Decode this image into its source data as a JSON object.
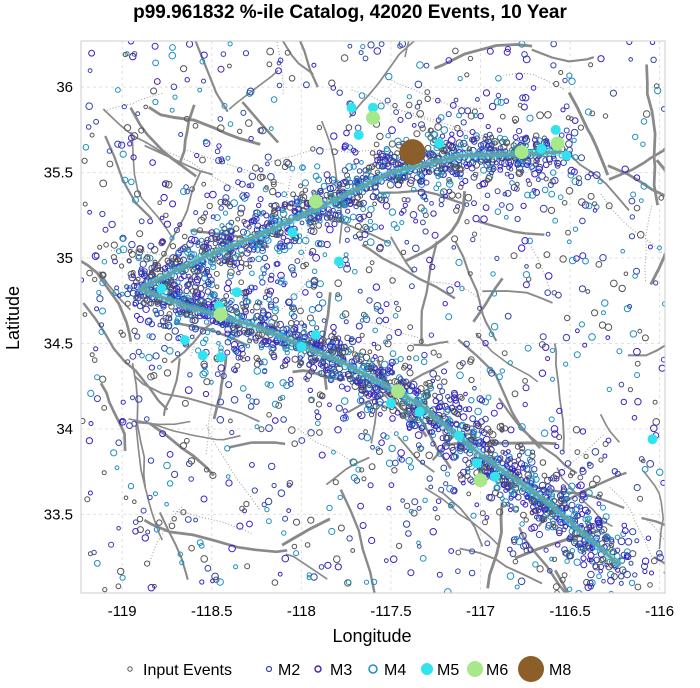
{
  "chart_data": {
    "type": "scatter",
    "title": "p99.961832 %-ile Catalog, 42020 Events, 10 Year",
    "xlabel": "Longitude",
    "ylabel": "Latitude",
    "xlim": [
      -119.23,
      -115.97
    ],
    "ylim": [
      33.04,
      36.27
    ],
    "xticks": [
      -119,
      -118.5,
      -118,
      -117.5,
      -117,
      -116.5,
      -116
    ],
    "yticks": [
      33.5,
      34,
      34.5,
      35,
      35.5,
      36
    ],
    "xtick_labels": [
      "-119",
      "-118.5",
      "-118",
      "-117.5",
      "-117",
      "-116.5",
      "-116"
    ],
    "ytick_labels": [
      "33.5",
      "34",
      "34.5",
      "35",
      "35.5",
      "36"
    ],
    "grid": true,
    "legend_position": "bottom",
    "legend": [
      "Input Events",
      "M2",
      "M3",
      "M4",
      "M5",
      "M6",
      "M8"
    ],
    "colors": {
      "input_events": "#555555",
      "m2": "#3344aa",
      "m3": "#3b1fc7",
      "m4": "#1f8fbf",
      "m5": "#2fe3ef",
      "m6": "#a6e88a",
      "m8": "#8b5e2a",
      "faults": "#8a8a8a",
      "rupture": "#6aa0a0"
    },
    "rupture_trace": [
      [
        -116.22,
        33.2
      ],
      [
        -116.6,
        33.55
      ],
      [
        -117.0,
        33.85
      ],
      [
        -117.35,
        34.15
      ],
      [
        -117.75,
        34.38
      ],
      [
        -118.25,
        34.6
      ],
      [
        -118.65,
        34.72
      ],
      [
        -118.9,
        34.82
      ],
      [
        -118.6,
        34.98
      ],
      [
        -118.2,
        35.15
      ],
      [
        -117.85,
        35.32
      ],
      [
        -117.5,
        35.5
      ],
      [
        -117.1,
        35.6
      ],
      [
        -116.75,
        35.61
      ],
      [
        -116.55,
        35.62
      ]
    ],
    "series": [
      {
        "name": "M5",
        "x": [
          -117.72,
          -117.6,
          -118.05,
          -118.78,
          -118.65,
          -118.55,
          -118.45,
          -118.36,
          -118.0,
          -117.92,
          -117.5,
          -117.34,
          -117.12,
          -117.02,
          -116.92,
          -116.58,
          -116.52,
          -116.66,
          -116.04,
          -117.68,
          -118.46,
          -117.23,
          -117.79
        ],
        "y": [
          35.88,
          35.88,
          35.15,
          34.82,
          34.52,
          34.43,
          34.42,
          34.8,
          34.48,
          34.55,
          34.15,
          34.1,
          33.96,
          33.8,
          33.72,
          35.75,
          35.6,
          35.64,
          33.94,
          35.72,
          34.72,
          35.67,
          34.98
        ]
      },
      {
        "name": "M6",
        "x": [
          -118.45,
          -117.46,
          -117.0,
          -117.92,
          -116.77,
          -116.57,
          -117.6
        ],
        "y": [
          34.67,
          34.22,
          33.7,
          35.33,
          35.62,
          35.67,
          35.82
        ]
      },
      {
        "name": "M8",
        "x": [
          -117.38
        ],
        "y": [
          35.62
        ]
      }
    ]
  }
}
